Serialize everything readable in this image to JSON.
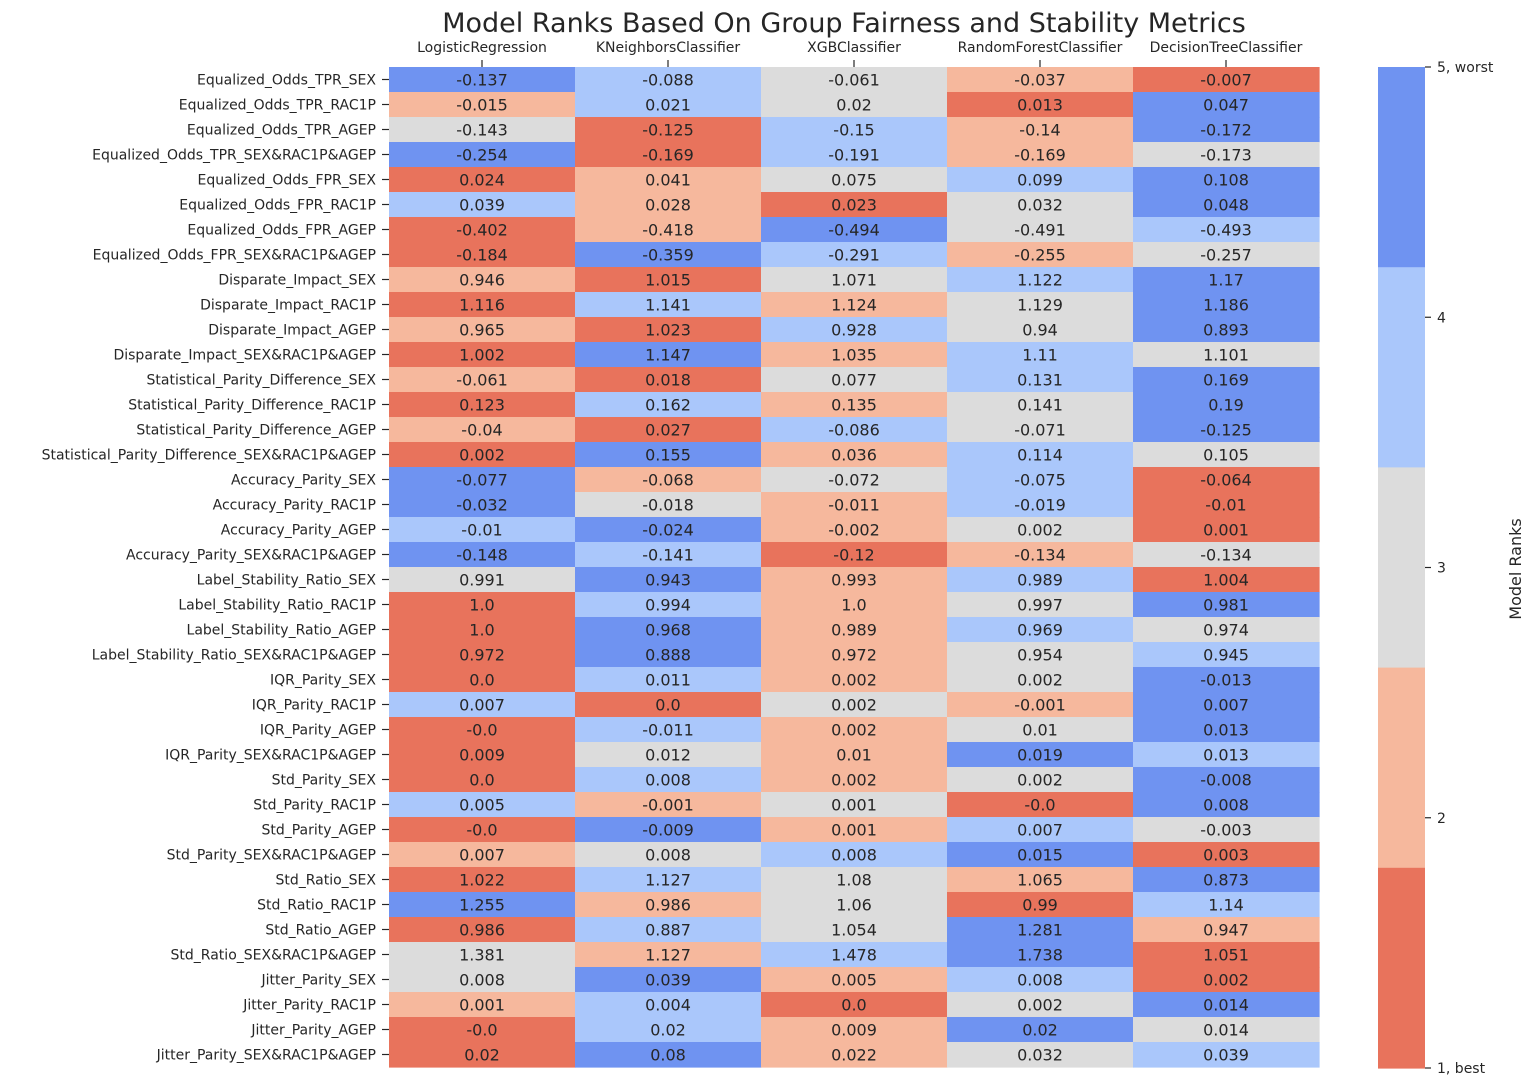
{
  "chart_data": {
    "type": "heatmap",
    "title": "Model Ranks Based On Group Fairness and Stability Metrics",
    "columns": [
      "LogisticRegression",
      "KNeighborsClassifier",
      "XGBClassifier",
      "RandomForestClassifier",
      "DecisionTreeClassifier"
    ],
    "rows": [
      "Equalized_Odds_TPR_SEX",
      "Equalized_Odds_TPR_RAC1P",
      "Equalized_Odds_TPR_AGEP",
      "Equalized_Odds_TPR_SEX&RAC1P&AGEP",
      "Equalized_Odds_FPR_SEX",
      "Equalized_Odds_FPR_RAC1P",
      "Equalized_Odds_FPR_AGEP",
      "Equalized_Odds_FPR_SEX&RAC1P&AGEP",
      "Disparate_Impact_SEX",
      "Disparate_Impact_RAC1P",
      "Disparate_Impact_AGEP",
      "Disparate_Impact_SEX&RAC1P&AGEP",
      "Statistical_Parity_Difference_SEX",
      "Statistical_Parity_Difference_RAC1P",
      "Statistical_Parity_Difference_AGEP",
      "Statistical_Parity_Difference_SEX&RAC1P&AGEP",
      "Accuracy_Parity_SEX",
      "Accuracy_Parity_RAC1P",
      "Accuracy_Parity_AGEP",
      "Accuracy_Parity_SEX&RAC1P&AGEP",
      "Label_Stability_Ratio_SEX",
      "Label_Stability_Ratio_RAC1P",
      "Label_Stability_Ratio_AGEP",
      "Label_Stability_Ratio_SEX&RAC1P&AGEP",
      "IQR_Parity_SEX",
      "IQR_Parity_RAC1P",
      "IQR_Parity_AGEP",
      "IQR_Parity_SEX&RAC1P&AGEP",
      "Std_Parity_SEX",
      "Std_Parity_RAC1P",
      "Std_Parity_AGEP",
      "Std_Parity_SEX&RAC1P&AGEP",
      "Std_Ratio_SEX",
      "Std_Ratio_RAC1P",
      "Std_Ratio_AGEP",
      "Std_Ratio_SEX&RAC1P&AGEP",
      "Jitter_Parity_SEX",
      "Jitter_Parity_RAC1P",
      "Jitter_Parity_AGEP",
      "Jitter_Parity_SEX&RAC1P&AGEP"
    ],
    "values": [
      [
        "-0.137",
        "-0.088",
        "-0.061",
        "-0.037",
        "-0.007"
      ],
      [
        "-0.015",
        "0.021",
        "0.02",
        "0.013",
        "0.047"
      ],
      [
        "-0.143",
        "-0.125",
        "-0.15",
        "-0.14",
        "-0.172"
      ],
      [
        "-0.254",
        "-0.169",
        "-0.191",
        "-0.169",
        "-0.173"
      ],
      [
        "0.024",
        "0.041",
        "0.075",
        "0.099",
        "0.108"
      ],
      [
        "0.039",
        "0.028",
        "0.023",
        "0.032",
        "0.048"
      ],
      [
        "-0.402",
        "-0.418",
        "-0.494",
        "-0.491",
        "-0.493"
      ],
      [
        "-0.184",
        "-0.359",
        "-0.291",
        "-0.255",
        "-0.257"
      ],
      [
        "0.946",
        "1.015",
        "1.071",
        "1.122",
        "1.17"
      ],
      [
        "1.116",
        "1.141",
        "1.124",
        "1.129",
        "1.186"
      ],
      [
        "0.965",
        "1.023",
        "0.928",
        "0.94",
        "0.893"
      ],
      [
        "1.002",
        "1.147",
        "1.035",
        "1.11",
        "1.101"
      ],
      [
        "-0.061",
        "0.018",
        "0.077",
        "0.131",
        "0.169"
      ],
      [
        "0.123",
        "0.162",
        "0.135",
        "0.141",
        "0.19"
      ],
      [
        "-0.04",
        "0.027",
        "-0.086",
        "-0.071",
        "-0.125"
      ],
      [
        "0.002",
        "0.155",
        "0.036",
        "0.114",
        "0.105"
      ],
      [
        "-0.077",
        "-0.068",
        "-0.072",
        "-0.075",
        "-0.064"
      ],
      [
        "-0.032",
        "-0.018",
        "-0.011",
        "-0.019",
        "-0.01"
      ],
      [
        "-0.01",
        "-0.024",
        "-0.002",
        "0.002",
        "0.001"
      ],
      [
        "-0.148",
        "-0.141",
        "-0.12",
        "-0.134",
        "-0.134"
      ],
      [
        "0.991",
        "0.943",
        "0.993",
        "0.989",
        "1.004"
      ],
      [
        "1.0",
        "0.994",
        "1.0",
        "0.997",
        "0.981"
      ],
      [
        "1.0",
        "0.968",
        "0.989",
        "0.969",
        "0.974"
      ],
      [
        "0.972",
        "0.888",
        "0.972",
        "0.954",
        "0.945"
      ],
      [
        "0.0",
        "0.011",
        "0.002",
        "0.002",
        "-0.013"
      ],
      [
        "0.007",
        "0.0",
        "0.002",
        "-0.001",
        "0.007"
      ],
      [
        "-0.0",
        "-0.011",
        "0.002",
        "0.01",
        "0.013"
      ],
      [
        "0.009",
        "0.012",
        "0.01",
        "0.019",
        "0.013"
      ],
      [
        "0.0",
        "0.008",
        "0.002",
        "0.002",
        "-0.008"
      ],
      [
        "0.005",
        "-0.001",
        "0.001",
        "-0.0",
        "0.008"
      ],
      [
        "-0.0",
        "-0.009",
        "0.001",
        "0.007",
        "-0.003"
      ],
      [
        "0.007",
        "0.008",
        "0.008",
        "0.015",
        "0.003"
      ],
      [
        "1.022",
        "1.127",
        "1.08",
        "1.065",
        "0.873"
      ],
      [
        "1.255",
        "0.986",
        "1.06",
        "0.99",
        "1.14"
      ],
      [
        "0.986",
        "0.887",
        "1.054",
        "1.281",
        "0.947"
      ],
      [
        "1.381",
        "1.127",
        "1.478",
        "1.738",
        "1.051"
      ],
      [
        "0.008",
        "0.039",
        "0.005",
        "0.008",
        "0.002"
      ],
      [
        "0.001",
        "0.004",
        "0.0",
        "0.002",
        "0.014"
      ],
      [
        "-0.0",
        "0.02",
        "0.009",
        "0.02",
        "0.014"
      ],
      [
        "0.02",
        "0.08",
        "0.022",
        "0.032",
        "0.039"
      ]
    ],
    "ranks": [
      [
        5,
        4,
        3,
        2,
        1
      ],
      [
        2,
        4,
        3,
        1,
        5
      ],
      [
        3,
        1,
        4,
        2,
        5
      ],
      [
        5,
        1,
        4,
        2,
        3
      ],
      [
        1,
        2,
        3,
        4,
        5
      ],
      [
        4,
        2,
        1,
        3,
        5
      ],
      [
        1,
        2,
        5,
        3,
        4
      ],
      [
        1,
        5,
        4,
        2,
        3
      ],
      [
        2,
        1,
        3,
        4,
        5
      ],
      [
        1,
        4,
        2,
        3,
        5
      ],
      [
        2,
        1,
        4,
        3,
        5
      ],
      [
        1,
        5,
        2,
        4,
        3
      ],
      [
        2,
        1,
        3,
        4,
        5
      ],
      [
        1,
        4,
        2,
        3,
        5
      ],
      [
        2,
        1,
        4,
        3,
        5
      ],
      [
        1,
        5,
        2,
        4,
        3
      ],
      [
        5,
        2,
        3,
        4,
        1
      ],
      [
        5,
        3,
        2,
        4,
        1
      ],
      [
        4,
        5,
        2,
        3,
        1
      ],
      [
        5,
        4,
        1,
        2,
        3
      ],
      [
        3,
        5,
        2,
        4,
        1
      ],
      [
        1,
        4,
        2,
        3,
        5
      ],
      [
        1,
        5,
        2,
        4,
        3
      ],
      [
        1,
        5,
        2,
        3,
        4
      ],
      [
        1,
        4,
        2,
        3,
        5
      ],
      [
        4,
        1,
        3,
        2,
        5
      ],
      [
        1,
        4,
        2,
        3,
        5
      ],
      [
        1,
        3,
        2,
        5,
        4
      ],
      [
        1,
        4,
        2,
        3,
        5
      ],
      [
        4,
        2,
        3,
        1,
        5
      ],
      [
        1,
        5,
        2,
        4,
        3
      ],
      [
        2,
        3,
        4,
        5,
        1
      ],
      [
        1,
        4,
        3,
        2,
        5
      ],
      [
        5,
        2,
        3,
        1,
        4
      ],
      [
        1,
        4,
        3,
        5,
        2
      ],
      [
        3,
        2,
        4,
        5,
        1
      ],
      [
        3,
        5,
        2,
        4,
        1
      ],
      [
        2,
        4,
        1,
        3,
        5
      ],
      [
        1,
        4,
        2,
        5,
        3
      ],
      [
        1,
        5,
        2,
        3,
        4
      ]
    ],
    "colors": {
      "1": "#e8735c",
      "2": "#f6b89d",
      "3": "#dcdcdc",
      "4": "#aac7fb",
      "5": "#6f93f1"
    },
    "colorbar": {
      "label": "Model Ranks",
      "ticks": [
        {
          "rank": 1,
          "label": "1, best"
        },
        {
          "rank": 2,
          "label": "2"
        },
        {
          "rank": 3,
          "label": "3"
        },
        {
          "rank": 4,
          "label": "4"
        },
        {
          "rank": 5,
          "label": "5, worst"
        }
      ]
    }
  }
}
